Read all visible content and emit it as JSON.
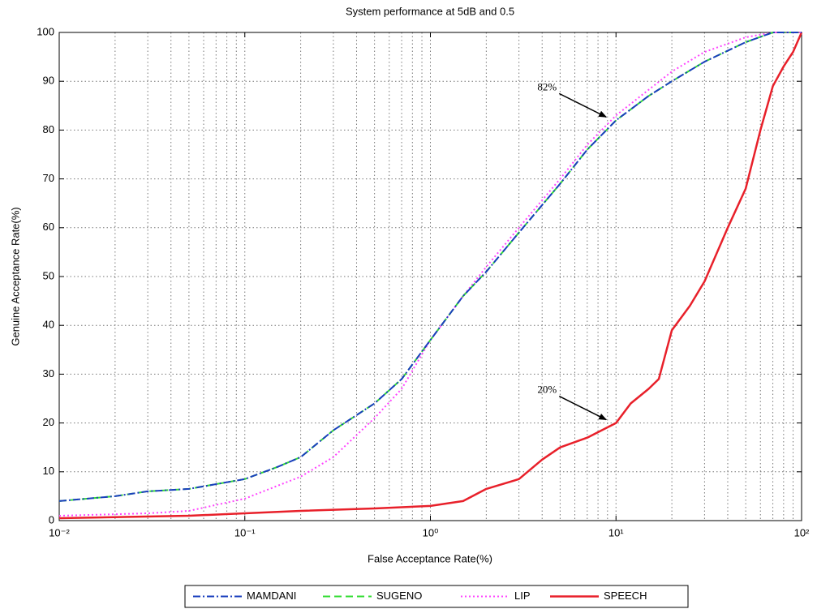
{
  "chart_data": {
    "type": "line",
    "title": "System performance at 5dB and 0.5",
    "x_label": "False Acceptance Rate(%)",
    "y_label": "Genuine Acceptance Rate(%)",
    "xscale": "log",
    "xlim": [
      0.01,
      100
    ],
    "xticks": [
      {
        "value": 0.01,
        "label": "10⁻²"
      },
      {
        "value": 0.1,
        "label": "10⁻¹"
      },
      {
        "value": 1,
        "label": "10⁰"
      },
      {
        "value": 10,
        "label": "10¹"
      },
      {
        "value": 100,
        "label": "10²"
      }
    ],
    "ylim": [
      0,
      100
    ],
    "yticks": [
      0,
      10,
      20,
      30,
      40,
      50,
      60,
      70,
      80,
      90,
      100
    ],
    "grid": true,
    "minor_grid": true,
    "legend": "bottom",
    "series": [
      {
        "name": "MAMDANI",
        "color": "#1a3fbd",
        "style": "dashdot",
        "x": [
          0.01,
          0.02,
          0.03,
          0.05,
          0.1,
          0.15,
          0.2,
          0.3,
          0.5,
          0.7,
          1,
          1.5,
          2,
          3,
          5,
          7,
          10,
          15,
          20,
          30,
          50,
          70,
          100
        ],
        "values": [
          4,
          5,
          6,
          6.5,
          8.5,
          11,
          13,
          18.5,
          24,
          29,
          37,
          46,
          51,
          59,
          69,
          76,
          82,
          87,
          90,
          94,
          98,
          100,
          100
        ]
      },
      {
        "name": "SUGENO",
        "color": "#33dd33",
        "style": "dashed",
        "x": [
          0.01,
          0.02,
          0.03,
          0.05,
          0.1,
          0.15,
          0.2,
          0.3,
          0.5,
          0.7,
          1,
          1.5,
          2,
          3,
          5,
          7,
          10,
          15,
          20,
          30,
          50,
          70,
          100
        ],
        "values": [
          4,
          5,
          6,
          6.5,
          8.5,
          11,
          13,
          18.5,
          24,
          29,
          37,
          46,
          51,
          59,
          69,
          76,
          82,
          87,
          90,
          94,
          98,
          100,
          100
        ]
      },
      {
        "name": "LIP",
        "color": "#ff44ff",
        "style": "dotted",
        "x": [
          0.01,
          0.03,
          0.05,
          0.1,
          0.2,
          0.3,
          0.5,
          0.7,
          1,
          1.5,
          2,
          3,
          5,
          7,
          10,
          20,
          30,
          50,
          70,
          100
        ],
        "values": [
          1,
          1.5,
          2,
          4.5,
          9,
          13,
          21,
          27,
          37,
          46,
          52,
          60,
          70,
          77,
          83,
          92,
          96,
          99,
          100,
          100
        ]
      },
      {
        "name": "SPEECH",
        "color": "#e8202a",
        "style": "solid",
        "x": [
          0.01,
          0.05,
          0.1,
          0.2,
          0.5,
          1,
          1.5,
          2,
          3,
          4,
          5,
          7,
          10,
          12,
          15,
          17,
          20,
          25,
          30,
          40,
          50,
          60,
          70,
          80,
          90,
          100
        ],
        "values": [
          0.5,
          1,
          1.5,
          2,
          2.5,
          3,
          4,
          6.5,
          8.5,
          12.5,
          15,
          17,
          20,
          24,
          27,
          29,
          39,
          44,
          49,
          60,
          68,
          80,
          89,
          93,
          96,
          100
        ]
      }
    ],
    "annotations": [
      {
        "text": "82%",
        "x": 10,
        "y": 82
      },
      {
        "text": "20%",
        "x": 10,
        "y": 20
      }
    ]
  }
}
